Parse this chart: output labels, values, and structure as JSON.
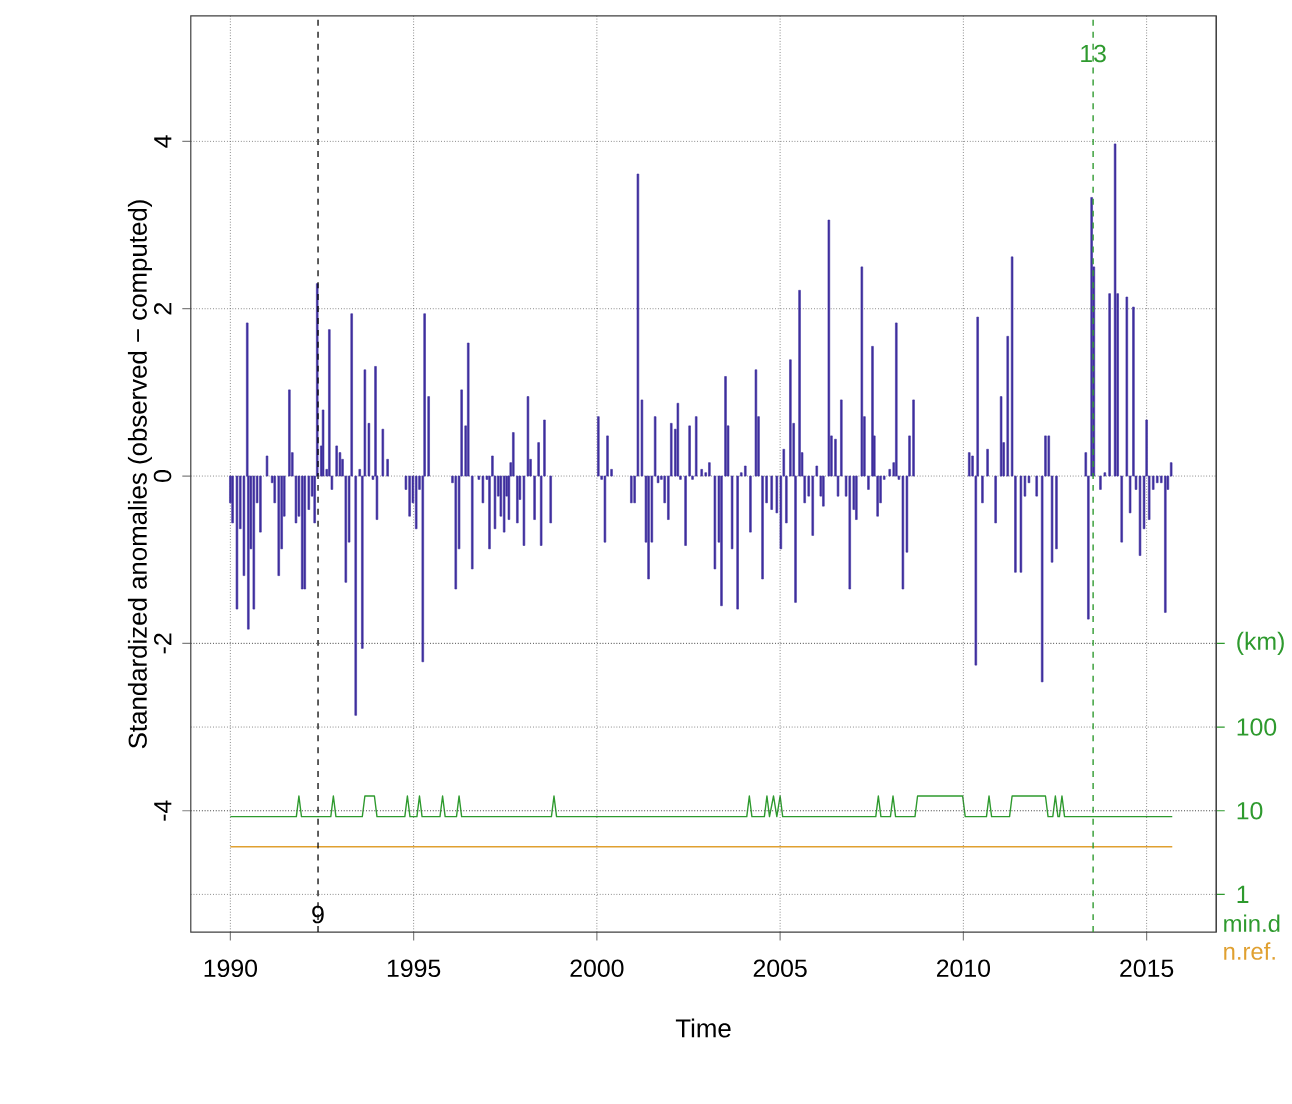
{
  "chart_data": {
    "type": "bar",
    "xlabel": "Time",
    "ylabel": "Standardized anomalies (observed − computed)",
    "xlim": [
      1988.92,
      2016.9
    ],
    "xticks": [
      1990,
      1995,
      2000,
      2005,
      2010,
      2015
    ],
    "ylim": [
      -5.45,
      5.5
    ],
    "yticks": [
      -4,
      -2,
      0,
      2,
      4
    ],
    "y2lim": [
      0.355,
      31600000000
    ],
    "y2ticks": [
      1,
      10,
      100,
      {
        "value": 1000,
        "label": "(km)"
      }
    ],
    "log": "y2",
    "grid": true,
    "legend": "bottom right",
    "ref_lines": [
      {
        "axis": "x",
        "value": 1992.39,
        "color": "#000000",
        "line_style": "dashed"
      },
      {
        "axis": "x",
        "value": 2013.54,
        "color": "#2e9a2e",
        "line_style": "dashed"
      }
    ],
    "annotations": [
      {
        "text": "9",
        "x": 1992.39,
        "y": -5.24
      },
      {
        "text": "13",
        "x": 2013.54,
        "y": 5.05
      }
    ],
    "series": [
      {
        "color": "#3f2f9e",
        "x": [
          1990.0,
          1990.06,
          1990.18,
          1990.27,
          1990.37,
          1990.46,
          1990.49,
          1990.56,
          1990.64,
          1990.73,
          1990.82,
          1991.0,
          1991.14,
          1991.21,
          1991.32,
          1991.4,
          1991.47,
          1991.61,
          1991.69,
          1991.79,
          1991.87,
          1991.96,
          1992.03,
          1992.14,
          1992.23,
          1992.3,
          1992.37,
          1992.48,
          1992.53,
          1992.63,
          1992.7,
          1992.77,
          1992.9,
          1992.99,
          1993.06,
          1993.15,
          1993.24,
          1993.31,
          1993.42,
          1993.53,
          1993.6,
          1993.67,
          1993.78,
          1993.89,
          1993.96,
          1994.0,
          1994.16,
          1994.29,
          1994.79,
          1994.89,
          1994.98,
          1995.07,
          1995.16,
          1995.25,
          1995.3,
          1995.41,
          1996.06,
          1996.15,
          1996.24,
          1996.31,
          1996.42,
          1996.49,
          1996.6,
          1996.78,
          1996.89,
          1997.0,
          1997.07,
          1997.15,
          1997.22,
          1997.31,
          1997.38,
          1997.47,
          1997.54,
          1997.6,
          1997.65,
          1997.72,
          1997.83,
          1997.9,
          1998.01,
          1998.12,
          1998.19,
          1998.3,
          1998.41,
          1998.48,
          1998.57,
          1998.74,
          2000.04,
          2000.13,
          2000.22,
          2000.29,
          2000.4,
          2000.94,
          2001.03,
          2001.12,
          2001.23,
          2001.34,
          2001.41,
          2001.5,
          2001.59,
          2001.67,
          2001.76,
          2001.85,
          2001.95,
          2002.03,
          2002.14,
          2002.21,
          2002.28,
          2002.42,
          2002.53,
          2002.61,
          2002.71,
          2002.86,
          2002.97,
          2003.07,
          2003.22,
          2003.33,
          2003.4,
          2003.51,
          2003.58,
          2003.69,
          2003.84,
          2003.94,
          2004.05,
          2004.19,
          2004.34,
          2004.41,
          2004.52,
          2004.63,
          2004.77,
          2004.91,
          2005.02,
          2005.1,
          2005.17,
          2005.28,
          2005.37,
          2005.42,
          2005.53,
          2005.6,
          2005.67,
          2005.78,
          2005.89,
          2006.0,
          2006.11,
          2006.18,
          2006.33,
          2006.4,
          2006.51,
          2006.58,
          2006.67,
          2006.8,
          2006.87,
          2006.9,
          2007.01,
          2007.08,
          2007.23,
          2007.3,
          2007.41,
          2007.52,
          2007.57,
          2007.66,
          2007.74,
          2007.84,
          2007.99,
          2008.1,
          2008.17,
          2008.24,
          2008.35,
          2008.46,
          2008.53,
          2008.64,
          2010.16,
          2010.25,
          2010.34,
          2010.39,
          2010.52,
          2010.66,
          2010.88,
          2011.03,
          2011.1,
          2011.21,
          2011.33,
          2011.42,
          2011.57,
          2011.68,
          2011.79,
          2012.0,
          2012.15,
          2012.24,
          2012.33,
          2012.42,
          2012.54,
          2013.34,
          2013.41,
          2013.5,
          2013.56,
          2013.74,
          2013.86,
          2013.99,
          2014.14,
          2014.21,
          2014.32,
          2014.46,
          2014.55,
          2014.64,
          2014.71,
          2014.82,
          2014.93,
          2015.0,
          2015.07,
          2015.18,
          2015.29,
          2015.4,
          2015.51,
          2015.58,
          2015.67
        ],
        "values": [
          -0.32,
          -0.56,
          -1.59,
          -0.63,
          -1.19,
          1.83,
          -1.83,
          -0.87,
          -1.59,
          -0.32,
          -0.67,
          0.24,
          -0.08,
          -0.32,
          -1.19,
          -0.87,
          -0.48,
          1.03,
          0.28,
          -0.56,
          -0.48,
          -1.35,
          -1.35,
          -0.4,
          -0.24,
          -0.56,
          2.3,
          0.36,
          0.79,
          0.08,
          1.75,
          -0.16,
          0.36,
          0.28,
          0.2,
          -1.27,
          -0.79,
          1.94,
          -2.86,
          0.08,
          -2.06,
          1.27,
          0.63,
          -0.04,
          1.31,
          -0.52,
          0.56,
          0.2,
          -0.16,
          -0.48,
          -0.32,
          -0.63,
          -0.16,
          -2.22,
          1.94,
          0.95,
          -0.08,
          -1.35,
          -0.87,
          1.03,
          0.6,
          1.59,
          -1.11,
          -0.04,
          -0.32,
          -0.04,
          -0.87,
          0.24,
          -0.63,
          -0.24,
          -0.48,
          -0.67,
          -0.24,
          -0.52,
          0.16,
          0.52,
          -0.56,
          -0.28,
          -0.83,
          0.95,
          0.2,
          -0.52,
          0.4,
          -0.83,
          0.67,
          -0.56,
          0.71,
          -0.04,
          -0.79,
          0.48,
          0.08,
          -0.32,
          -0.32,
          3.61,
          0.91,
          -0.79,
          -1.23,
          -0.79,
          0.71,
          -0.08,
          -0.04,
          -0.32,
          -0.52,
          0.63,
          0.56,
          0.87,
          -0.04,
          -0.83,
          0.6,
          -0.04,
          0.71,
          0.08,
          0.04,
          0.16,
          -1.11,
          -0.79,
          -1.55,
          1.19,
          0.6,
          -0.87,
          -1.59,
          0.04,
          0.12,
          -0.67,
          1.27,
          0.71,
          -1.23,
          -0.32,
          -0.4,
          -0.44,
          -0.87,
          0.32,
          -0.56,
          1.39,
          0.63,
          -1.51,
          2.22,
          0.28,
          -0.32,
          -0.24,
          -0.71,
          0.12,
          -0.24,
          -0.36,
          3.06,
          0.48,
          0.44,
          -0.24,
          0.91,
          -0.24,
          null,
          -1.35,
          -0.4,
          -0.52,
          2.5,
          0.71,
          -0.16,
          1.55,
          0.48,
          -0.48,
          -0.32,
          -0.04,
          0.08,
          0.16,
          1.83,
          -0.04,
          -1.35,
          -0.91,
          0.48,
          0.91,
          0.28,
          0.24,
          -2.26,
          1.9,
          -0.32,
          0.32,
          -0.56,
          0.95,
          0.4,
          1.67,
          2.62,
          -1.15,
          -1.15,
          -0.24,
          -0.08,
          -0.24,
          -2.46,
          0.48,
          0.48,
          -1.03,
          -0.87,
          0.28,
          -1.71,
          3.33,
          2.5,
          -0.16,
          0.04,
          2.18,
          3.97,
          2.18,
          -0.79,
          2.14,
          -0.44,
          2.02,
          -0.16,
          -0.95,
          -0.63,
          0.67,
          -0.52,
          -0.16,
          -0.08,
          -0.08,
          -1.63,
          -0.16,
          0.16
        ]
      },
      {
        "type": "line",
        "name": "min.d",
        "axis": "y2",
        "color": "#2e9a2e",
        "x": [
          1990.0,
          1991.8,
          1991.87,
          1991.94,
          1992.74,
          1992.81,
          1992.88,
          1993.6,
          1993.67,
          1993.93,
          1994.0,
          1994.76,
          1994.83,
          1994.9,
          1995.09,
          1995.16,
          1995.23,
          1995.72,
          1995.79,
          1995.86,
          1996.17,
          1996.24,
          1996.31,
          1998.76,
          1998.83,
          1998.9,
          2004.09,
          2004.16,
          2004.23,
          2004.57,
          2004.64,
          2004.71,
          2004.82,
          2004.91,
          2005.0,
          2005.07,
          2007.61,
          2007.68,
          2007.75,
          2008.01,
          2008.08,
          2008.15,
          2008.68,
          2008.75,
          2009.98,
          2010.05,
          2010.63,
          2010.7,
          2010.77,
          2011.26,
          2011.33,
          2012.24,
          2012.31,
          2012.44,
          2012.51,
          2012.58,
          2012.62,
          2012.69,
          2012.76,
          2015.7
        ],
        "values": [
          8.5,
          8.5,
          15,
          8.5,
          8.5,
          15,
          8.5,
          8.5,
          15,
          15,
          8.5,
          8.5,
          15,
          8.5,
          8.5,
          15,
          8.5,
          8.5,
          15,
          8.5,
          8.5,
          15,
          8.5,
          8.5,
          15,
          8.5,
          8.5,
          15,
          8.5,
          8.5,
          15,
          8.5,
          15,
          8.5,
          15,
          8.5,
          8.5,
          15,
          8.5,
          8.5,
          15,
          8.5,
          8.5,
          15,
          15,
          8.5,
          8.5,
          15,
          8.5,
          8.5,
          15,
          15,
          8.5,
          8.5,
          15,
          8.5,
          8.5,
          15,
          8.5,
          8.5
        ]
      },
      {
        "type": "line",
        "name": "n.ref.",
        "color": "#e0a030",
        "x": [
          1990.0,
          2015.7
        ],
        "values": [
          -4.43,
          -4.43
        ]
      }
    ]
  }
}
